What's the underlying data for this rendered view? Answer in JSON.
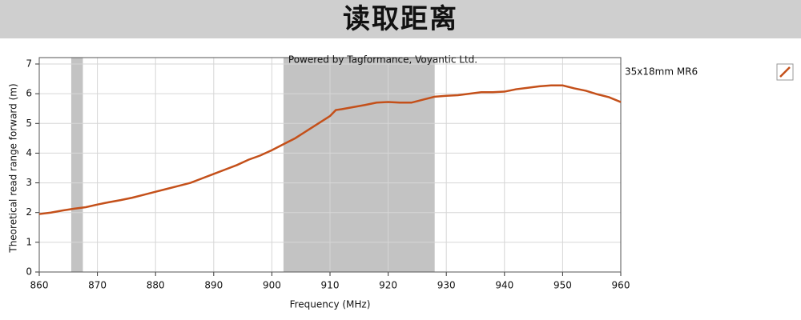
{
  "header": {
    "title": "读取距离"
  },
  "chart_data": {
    "type": "line",
    "note": "Powered by Tagformance, Voyantic Ltd.",
    "xlabel": "Frequency (MHz)",
    "ylabel": "Theoretical read range forward (m)",
    "x": [
      860,
      862,
      864,
      866,
      868,
      870,
      872,
      874,
      876,
      878,
      880,
      882,
      884,
      886,
      888,
      890,
      892,
      894,
      896,
      898,
      900,
      902,
      904,
      906,
      908,
      910,
      911,
      912,
      914,
      916,
      918,
      920,
      922,
      924,
      926,
      928,
      930,
      932,
      934,
      936,
      938,
      940,
      942,
      944,
      946,
      948,
      950,
      952,
      954,
      956,
      958,
      960
    ],
    "series": [
      {
        "name": "35x18mm MR6",
        "color": "#c4501a",
        "values": [
          1.95,
          2.0,
          2.07,
          2.13,
          2.18,
          2.27,
          2.35,
          2.42,
          2.5,
          2.6,
          2.7,
          2.8,
          2.9,
          3.0,
          3.15,
          3.3,
          3.45,
          3.6,
          3.78,
          3.92,
          4.1,
          4.3,
          4.5,
          4.75,
          5.0,
          5.25,
          5.45,
          5.48,
          5.55,
          5.62,
          5.7,
          5.72,
          5.7,
          5.7,
          5.8,
          5.9,
          5.93,
          5.95,
          6.0,
          6.05,
          6.05,
          6.07,
          6.15,
          6.2,
          6.25,
          6.28,
          6.28,
          6.18,
          6.1,
          5.98,
          5.88,
          5.72
        ]
      }
    ],
    "shaded_ranges": [
      [
        865.5,
        867.5
      ],
      [
        902,
        928
      ]
    ],
    "xlim": [
      860,
      960
    ],
    "xticks": [
      860,
      870,
      880,
      890,
      900,
      910,
      920,
      930,
      940,
      950,
      960
    ],
    "ylim": [
      0,
      7
    ],
    "yticks": [
      0,
      1,
      2,
      3,
      4,
      5,
      6,
      7
    ],
    "grid": true
  }
}
